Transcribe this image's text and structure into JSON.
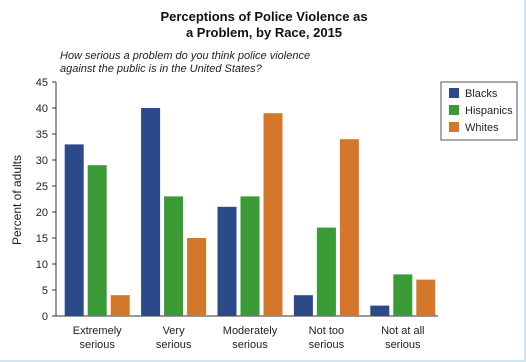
{
  "chart_data": {
    "type": "bar",
    "title_lines": [
      "Perceptions of Police Violence as",
      "a Problem, by Race, 2015"
    ],
    "subtitle_lines": [
      "How serious a problem do you think police violence",
      "against the public is in the United States?"
    ],
    "ylabel": "Percent of adults",
    "xlabel": "",
    "ylim": [
      0,
      45
    ],
    "yticks": [
      0,
      5,
      10,
      15,
      20,
      25,
      30,
      35,
      40,
      45
    ],
    "categories": [
      [
        "Extremely",
        "serious"
      ],
      [
        "Very",
        "serious"
      ],
      [
        "Moderately",
        "serious"
      ],
      [
        "Not too",
        "serious"
      ],
      [
        "Not at all",
        "serious"
      ]
    ],
    "series": [
      {
        "name": "Blacks",
        "color": "#2c4a8a",
        "values": [
          33,
          40,
          21,
          4,
          2
        ]
      },
      {
        "name": "Hispanics",
        "color": "#3a9a35",
        "values": [
          29,
          23,
          23,
          17,
          8
        ]
      },
      {
        "name": "Whites",
        "color": "#d4772a",
        "values": [
          4,
          15,
          39,
          34,
          7
        ]
      }
    ],
    "grid": false,
    "legend_position": "top-right"
  }
}
